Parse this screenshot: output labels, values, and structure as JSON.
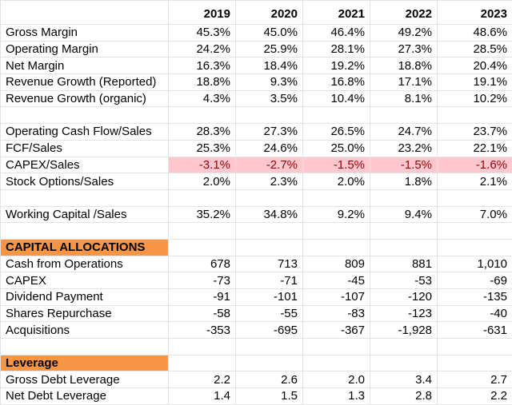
{
  "table": {
    "years": [
      "2019",
      "2020",
      "2021",
      "2022",
      "2023"
    ],
    "groups": [
      {
        "rows": [
          {
            "label": "Gross Margin",
            "values": [
              "45.3%",
              "45.0%",
              "46.4%",
              "49.2%",
              "48.6%"
            ]
          },
          {
            "label": "Operating Margin",
            "values": [
              "24.2%",
              "25.9%",
              "28.1%",
              "27.3%",
              "28.5%"
            ]
          },
          {
            "label": "Net Margin",
            "values": [
              "16.3%",
              "18.4%",
              "19.2%",
              "18.8%",
              "20.4%"
            ]
          },
          {
            "label": "Revenue Growth (Reported)",
            "values": [
              "18.8%",
              "9.3%",
              "16.8%",
              "17.1%",
              "19.1%"
            ]
          },
          {
            "label": "Revenue Growth (organic)",
            "values": [
              "4.3%",
              "3.5%",
              "10.4%",
              "8.1%",
              "10.2%"
            ]
          }
        ]
      },
      {
        "rows": [
          {
            "label": "Operating Cash Flow/Sales",
            "values": [
              "28.3%",
              "27.3%",
              "26.5%",
              "24.7%",
              "23.7%"
            ]
          },
          {
            "label": "FCF/Sales",
            "values": [
              "25.3%",
              "24.6%",
              "25.0%",
              "23.2%",
              "22.1%"
            ]
          },
          {
            "label": "CAPEX/Sales",
            "values": [
              "-3.1%",
              "-2.7%",
              "-1.5%",
              "-1.5%",
              "-1.6%"
            ],
            "highlight": true
          },
          {
            "label": "Stock Options/Sales",
            "values": [
              "2.0%",
              "2.3%",
              "2.0%",
              "1.8%",
              "2.1%"
            ]
          }
        ]
      },
      {
        "rows": [
          {
            "label": "Working Capital /Sales",
            "values": [
              "35.2%",
              "34.8%",
              "9.2%",
              "9.4%",
              "7.0%"
            ]
          }
        ]
      },
      {
        "title": "CAPITAL ALLOCATIONS",
        "rows": [
          {
            "label": "Cash from Operations",
            "values": [
              "678",
              "713",
              "809",
              "881",
              "1,010"
            ]
          },
          {
            "label": "CAPEX",
            "values": [
              "-73",
              "-71",
              "-45",
              "-53",
              "-69"
            ]
          },
          {
            "label": "Dividend Payment",
            "values": [
              "-91",
              "-101",
              "-107",
              "-120",
              "-135"
            ]
          },
          {
            "label": "Shares Repurchase",
            "values": [
              "-58",
              "-55",
              "-83",
              "-123",
              "-40"
            ]
          },
          {
            "label": "Acquisitions",
            "values": [
              "-353",
              "-695",
              "-367",
              "-1,928",
              "-631"
            ]
          }
        ]
      },
      {
        "title": "Leverage",
        "rows": [
          {
            "label": "Gross Debt Leverage",
            "values": [
              "2.2",
              "2.6",
              "2.0",
              "3.4",
              "2.7"
            ]
          },
          {
            "label": "Net Debt Leverage",
            "values": [
              "1.4",
              "1.5",
              "1.3",
              "2.8",
              "2.2"
            ]
          }
        ]
      }
    ]
  }
}
